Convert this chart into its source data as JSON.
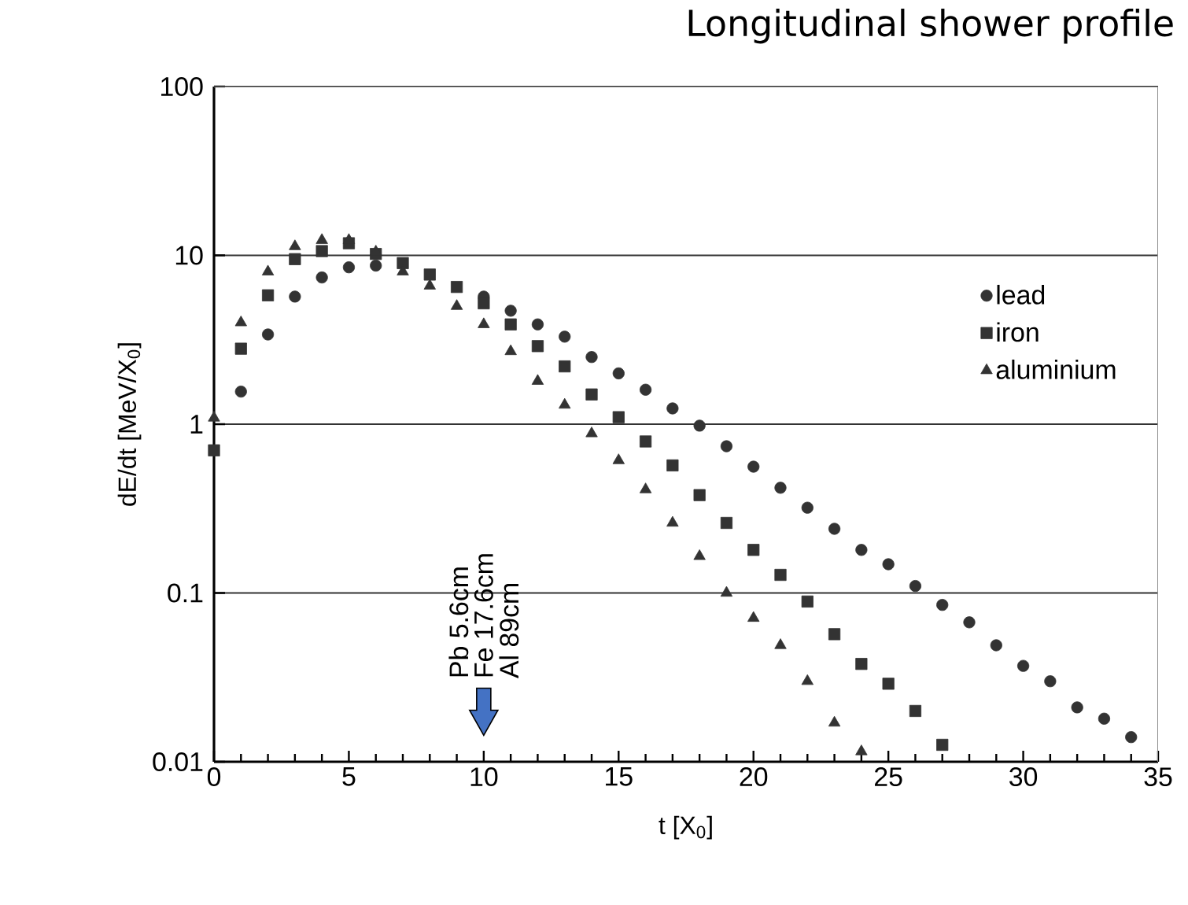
{
  "chart_data": {
    "type": "scatter",
    "title": "Longitudinal shower profile",
    "xlabel": "t [X$_{0}$]",
    "ylabel": "dE/dt [MeV/X$_{0}$]",
    "series": [
      {
        "name": "lead",
        "color": "#333333",
        "marker": "circle",
        "x": [
          1,
          2,
          3,
          4,
          5,
          6,
          7,
          8,
          9,
          10,
          11,
          12,
          13,
          14,
          15,
          16,
          17,
          18,
          19,
          20,
          21,
          22,
          23,
          24,
          25,
          26,
          27,
          28,
          29,
          30,
          31,
          32,
          33,
          34
        ],
        "values": [
          1.56,
          3.4,
          5.7,
          7.4,
          8.5,
          8.7,
          null,
          null,
          null,
          5.7,
          4.7,
          3.9,
          3.3,
          2.5,
          2.0,
          1.6,
          1.24,
          0.98,
          0.74,
          0.56,
          0.42,
          0.32,
          0.24,
          0.18,
          0.148,
          0.11,
          0.085,
          0.067,
          0.049,
          0.037,
          0.03,
          0.021,
          0.018,
          0.014
        ]
      },
      {
        "name": "iron",
        "color": "#333333",
        "marker": "square",
        "x": [
          0,
          1,
          2,
          3,
          4,
          5,
          6,
          7,
          8,
          9,
          10,
          11,
          12,
          13,
          14,
          15,
          16,
          17,
          18,
          19,
          20,
          21,
          22,
          23,
          24,
          25,
          26,
          27
        ],
        "values": [
          0.7,
          2.8,
          5.8,
          9.5,
          10.6,
          11.8,
          10.2,
          9.0,
          7.7,
          6.5,
          5.2,
          3.9,
          2.9,
          2.2,
          1.5,
          1.1,
          0.79,
          0.57,
          0.38,
          0.26,
          0.18,
          0.128,
          0.089,
          0.057,
          0.038,
          0.029,
          0.02,
          0.0126
        ]
      },
      {
        "name": "aluminium",
        "color": "#333333",
        "marker": "triangle",
        "x": [
          0,
          1,
          2,
          3,
          4,
          5,
          6,
          7,
          8,
          9,
          10,
          11,
          12,
          13,
          14,
          15,
          16,
          17,
          18,
          19,
          20,
          21,
          22,
          23,
          24
        ],
        "values": [
          1.09,
          4.0,
          8.0,
          11.3,
          12.3,
          12.3,
          10.5,
          8.0,
          6.6,
          5.0,
          3.9,
          2.7,
          1.8,
          1.3,
          0.88,
          0.61,
          0.41,
          0.26,
          0.165,
          0.1,
          0.071,
          0.049,
          0.03,
          0.017,
          0.0115
        ]
      }
    ],
    "xlim": [
      0,
      35
    ],
    "xticks": [
      0,
      5,
      10,
      15,
      20,
      25,
      30,
      35
    ],
    "ylim": [
      0.01,
      100
    ],
    "yticks": [
      0.01,
      0.1,
      1,
      10,
      100
    ],
    "log": "y",
    "grid": "y",
    "legend": "right",
    "annotations": [
      "Pb 5.6cm",
      "Fe 17.6cm",
      "Al 89cm"
    ]
  }
}
